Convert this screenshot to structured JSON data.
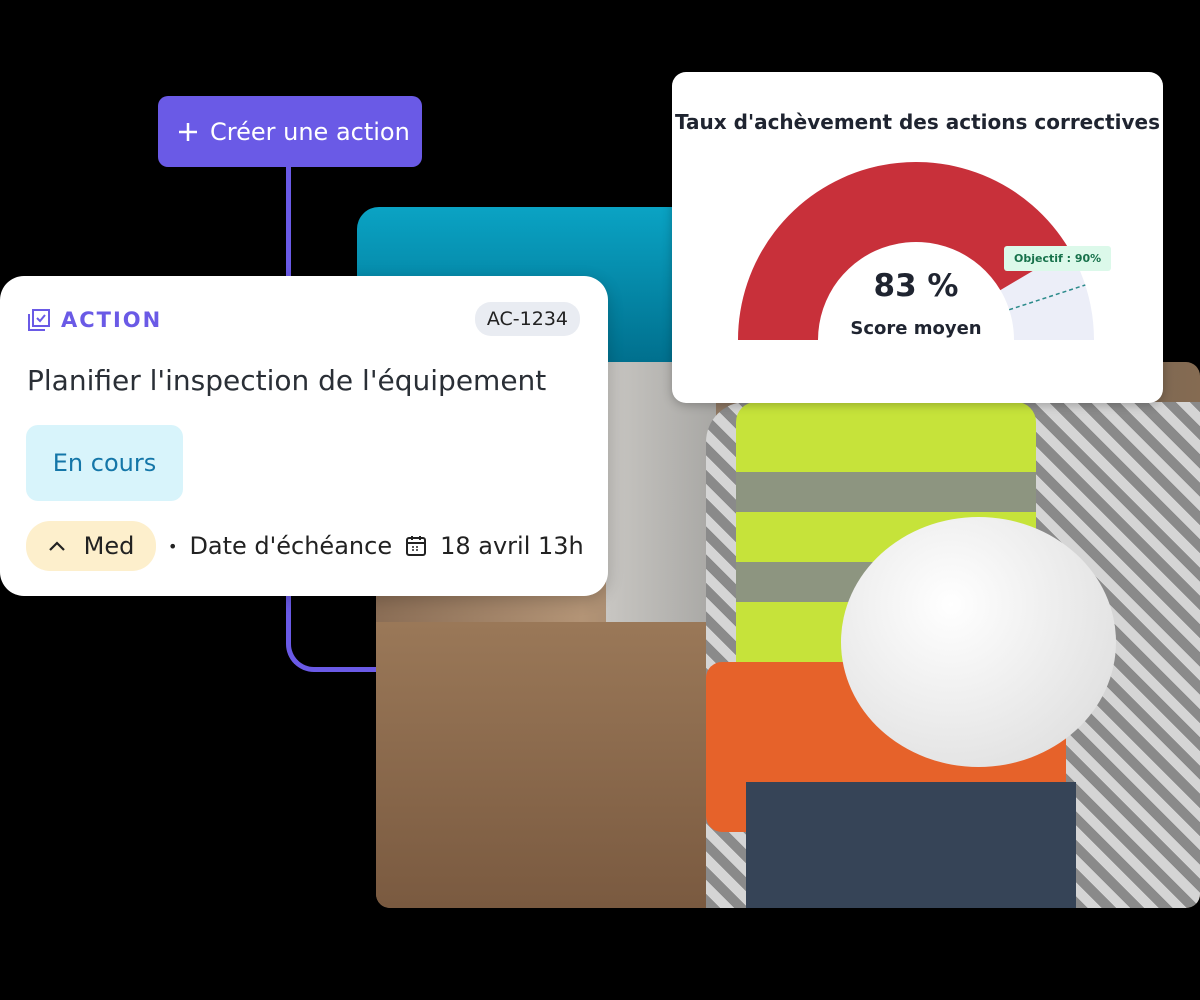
{
  "create_button": {
    "label": "Créer une action",
    "icon": "plus-icon"
  },
  "action_card": {
    "type_label": "ACTION",
    "type_icon": "checklist-icon",
    "id": "AC-1234",
    "title": "Planifier l'inspection de l'équipement",
    "status": "En cours",
    "priority": "Med",
    "priority_icon": "chevron-up-icon",
    "separator": "•",
    "due_label": "Date d'échéance",
    "due_icon": "calendar-icon",
    "due_date": "18 avril 13h"
  },
  "gauge": {
    "title": "Taux d'achèvement des actions correctives",
    "value_text": "83 %",
    "value": 83,
    "label": "Score moyen",
    "target_text": "Objectif : 90%",
    "target": 90,
    "colors": {
      "fill": "#c8303a",
      "track": "#eceef8",
      "target_line": "#2a8a8a"
    }
  }
}
